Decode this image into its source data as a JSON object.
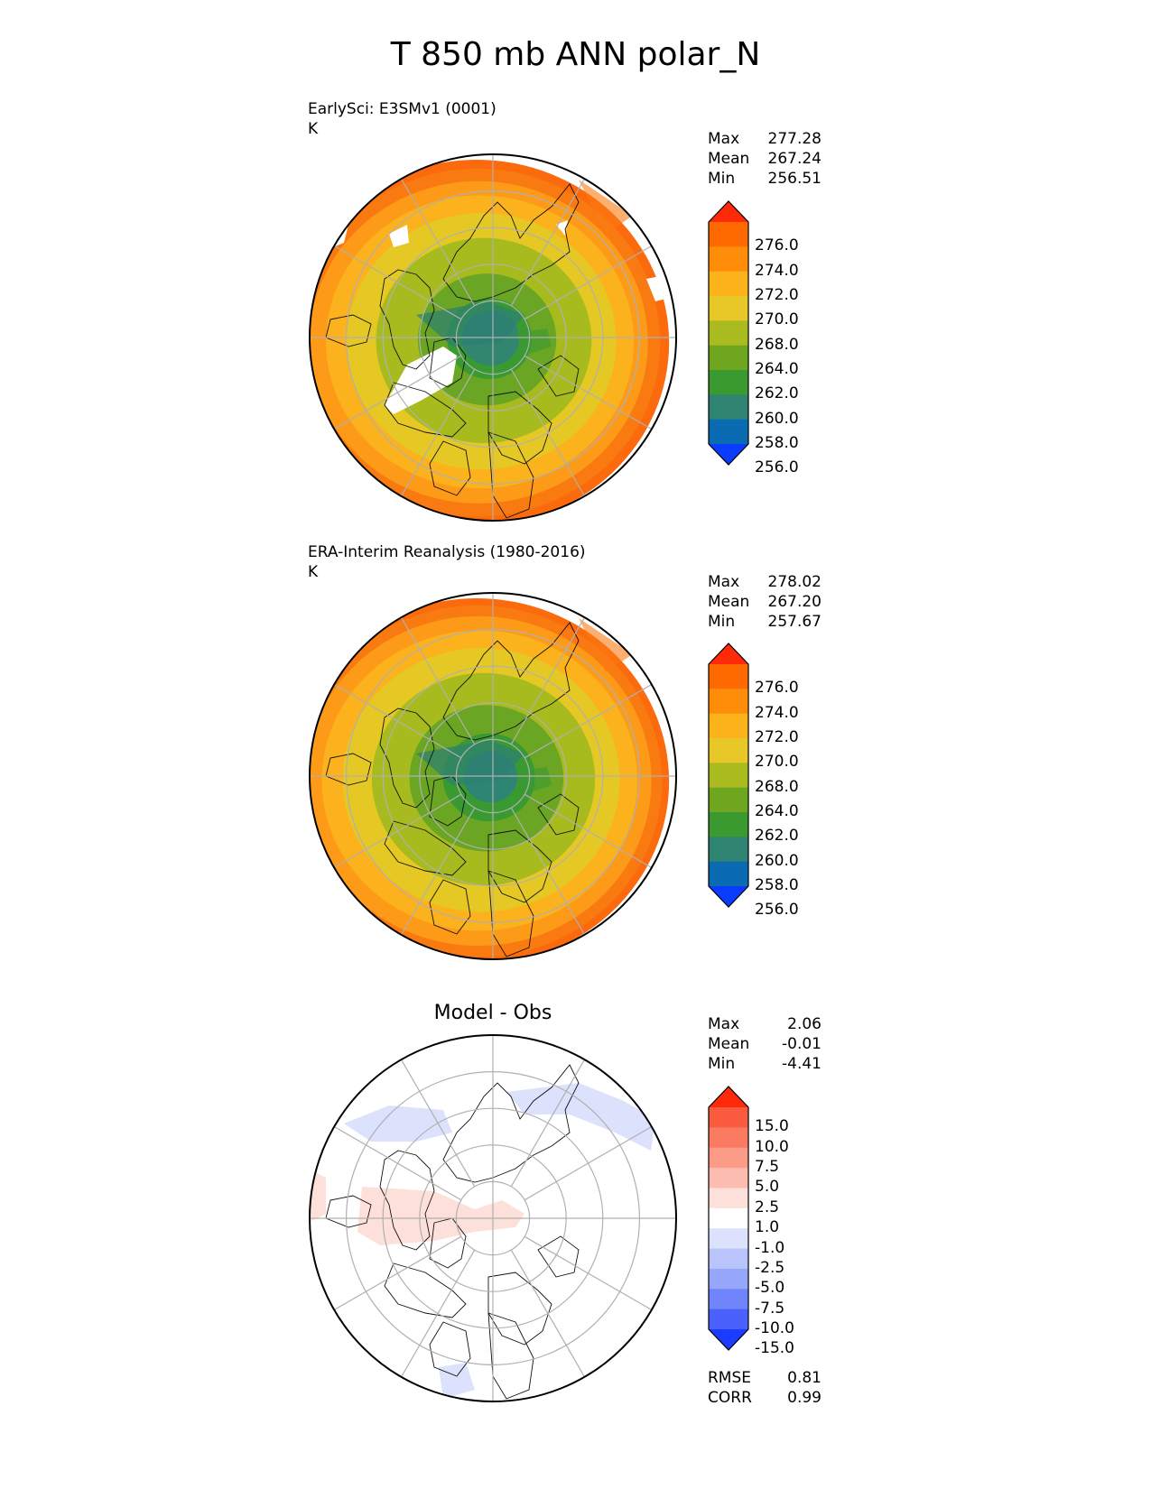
{
  "title": "T 850 mb ANN polar_N",
  "panels": [
    {
      "id": "test",
      "label_line1": "EarlySci: E3SMv1 (0001)",
      "label_line2": "K",
      "stats": [
        {
          "name": "Max",
          "value": "277.28"
        },
        {
          "name": "Mean",
          "value": "267.24"
        },
        {
          "name": "Min",
          "value": "256.51"
        }
      ],
      "rings": [
        {
          "max": 0.15,
          "color": "#31866f"
        },
        {
          "max": 0.22,
          "color": "#3a9a32"
        },
        {
          "max": 0.36,
          "color": "#6aa524"
        },
        {
          "max": 0.56,
          "color": "#a8bb1e"
        },
        {
          "max": 0.7,
          "color": "#e6c824"
        },
        {
          "max": 0.8,
          "color": "#fbb21c"
        },
        {
          "max": 0.88,
          "color": "#fd9a18"
        },
        {
          "max": 0.95,
          "color": "#f97a10"
        },
        {
          "max": 1.0,
          "color": "#fb6a0c"
        }
      ]
    },
    {
      "id": "ref",
      "label_line1": "ERA-Interim Reanalysis (1980-2016)",
      "label_line2": "K",
      "stats": [
        {
          "name": "Max",
          "value": "278.02"
        },
        {
          "name": "Mean",
          "value": "267.20"
        },
        {
          "name": "Min",
          "value": "257.67"
        }
      ],
      "rings": [
        {
          "max": 0.14,
          "color": "#2f8574"
        },
        {
          "max": 0.24,
          "color": "#3a9a32"
        },
        {
          "max": 0.4,
          "color": "#6aa524"
        },
        {
          "max": 0.58,
          "color": "#a8bb1e"
        },
        {
          "max": 0.72,
          "color": "#e6c824"
        },
        {
          "max": 0.82,
          "color": "#fbb21c"
        },
        {
          "max": 0.9,
          "color": "#fd9a18"
        },
        {
          "max": 0.96,
          "color": "#f97a10"
        },
        {
          "max": 1.0,
          "color": "#fb6a0c"
        }
      ]
    }
  ],
  "diff_panel": {
    "title": "Model - Obs",
    "stats": [
      {
        "name": "Max",
        "value": "2.06"
      },
      {
        "name": "Mean",
        "value": "-0.01"
      },
      {
        "name": "Min",
        "value": "-4.41"
      }
    ],
    "metrics": [
      {
        "name": "RMSE",
        "value": "0.81"
      },
      {
        "name": "CORR",
        "value": "0.99"
      }
    ]
  },
  "colorbar_abs": {
    "ticks": [
      "276.0",
      "274.0",
      "272.0",
      "270.0",
      "268.0",
      "264.0",
      "262.0",
      "260.0",
      "258.0",
      "256.0"
    ],
    "colors": [
      "#ff2a0a",
      "#ff6a00",
      "#ff8d0a",
      "#fcb21a",
      "#e8c828",
      "#a9bb1f",
      "#6ea61f",
      "#3b9a2f",
      "#2f8571",
      "#0a6bb2",
      "#0a3cff"
    ]
  },
  "colorbar_diff": {
    "ticks": [
      "15.0",
      "10.0",
      "7.5",
      "5.0",
      "2.5",
      "1.0",
      "-1.0",
      "-2.5",
      "-5.0",
      "-7.5",
      "-10.0",
      "-15.0"
    ],
    "colors": [
      "#ff2a0a",
      "#fa5a3e",
      "#fb7a62",
      "#fc9b88",
      "#fdbcb0",
      "#fde0d9",
      "#ffffff",
      "#dce2fc",
      "#b8c4fb",
      "#95a6fb",
      "#7085fb",
      "#4a62fb",
      "#1a3cff"
    ]
  }
}
